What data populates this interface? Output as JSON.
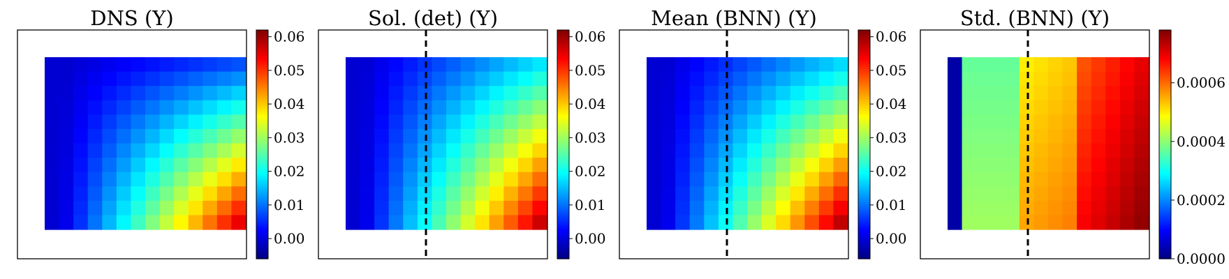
{
  "chart_data": [
    {
      "type": "heatmap",
      "title": "DNS (Y)",
      "field": "dns",
      "show_dashed_line": false,
      "colorbar": {
        "min": -0.006,
        "max": 0.062,
        "ticks": [
          "0.00",
          "0.01",
          "0.02",
          "0.03",
          "0.04",
          "0.05",
          "0.06"
        ],
        "tick_values": [
          0,
          0.01,
          0.02,
          0.03,
          0.04,
          0.05,
          0.06
        ]
      }
    },
    {
      "type": "heatmap",
      "title": "Sol. (det) (Y)",
      "field": "det",
      "show_dashed_line": true,
      "colorbar": {
        "min": -0.006,
        "max": 0.062,
        "ticks": [
          "0.00",
          "0.01",
          "0.02",
          "0.03",
          "0.04",
          "0.05",
          "0.06"
        ],
        "tick_values": [
          0,
          0.01,
          0.02,
          0.03,
          0.04,
          0.05,
          0.06
        ]
      }
    },
    {
      "type": "heatmap",
      "title": "Mean (BNN) (Y)",
      "field": "mean",
      "show_dashed_line": true,
      "colorbar": {
        "min": -0.006,
        "max": 0.062,
        "ticks": [
          "0.00",
          "0.01",
          "0.02",
          "0.03",
          "0.04",
          "0.05",
          "0.06"
        ],
        "tick_values": [
          0,
          0.01,
          0.02,
          0.03,
          0.04,
          0.05,
          0.06
        ]
      }
    },
    {
      "type": "heatmap",
      "title": "Std. (BNN) (Y)",
      "field": "std",
      "show_dashed_line": true,
      "colorbar": {
        "min": 0,
        "max": 0.00078,
        "ticks": [
          "0.0000",
          "0.0002",
          "0.0004",
          "0.0006"
        ],
        "tick_values": [
          0,
          0.0002,
          0.0004,
          0.0006
        ]
      }
    }
  ],
  "grid": {
    "cols": 14,
    "rows": 12
  },
  "colormap": "jet"
}
